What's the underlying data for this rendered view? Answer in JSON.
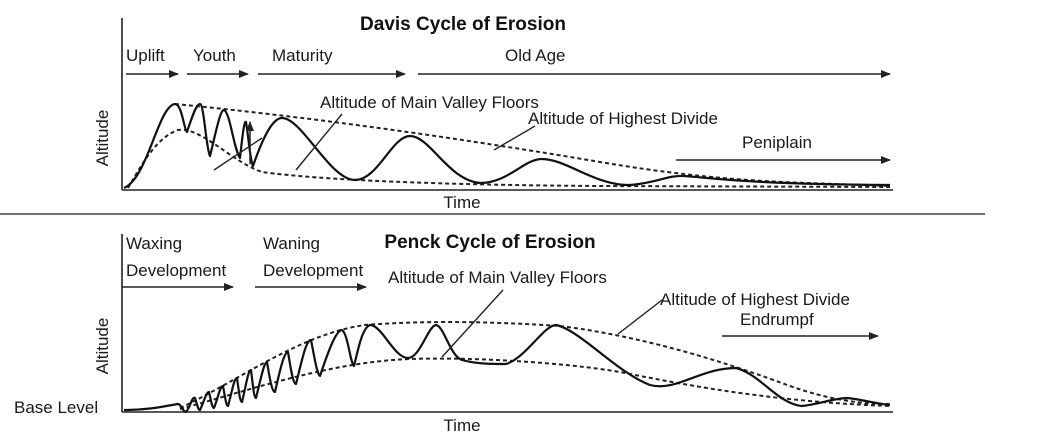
{
  "davis": {
    "title": "Davis Cycle of Erosion",
    "stages": [
      "Uplift",
      "Youth",
      "Maturity",
      "Old Age"
    ],
    "valley_label": "Altitude of Main Valley Floors",
    "divide_label": "Altitude of Highest Divide",
    "final_label": "Peniplain",
    "xlabel": "Time",
    "ylabel": "Altitude"
  },
  "penck": {
    "title": "Penck Cycle of Erosion",
    "waxing_line1": "Waxing",
    "waxing_line2": "Development",
    "waning_line1": "Waning",
    "waning_line2": "Development",
    "valley_label": "Altitude of Main Valley Floors",
    "divide_label": "Altitude of Highest Divide",
    "final_label": "Endrumpf",
    "base_label": "Base Level",
    "xlabel": "Time",
    "ylabel": "Altitude"
  }
}
